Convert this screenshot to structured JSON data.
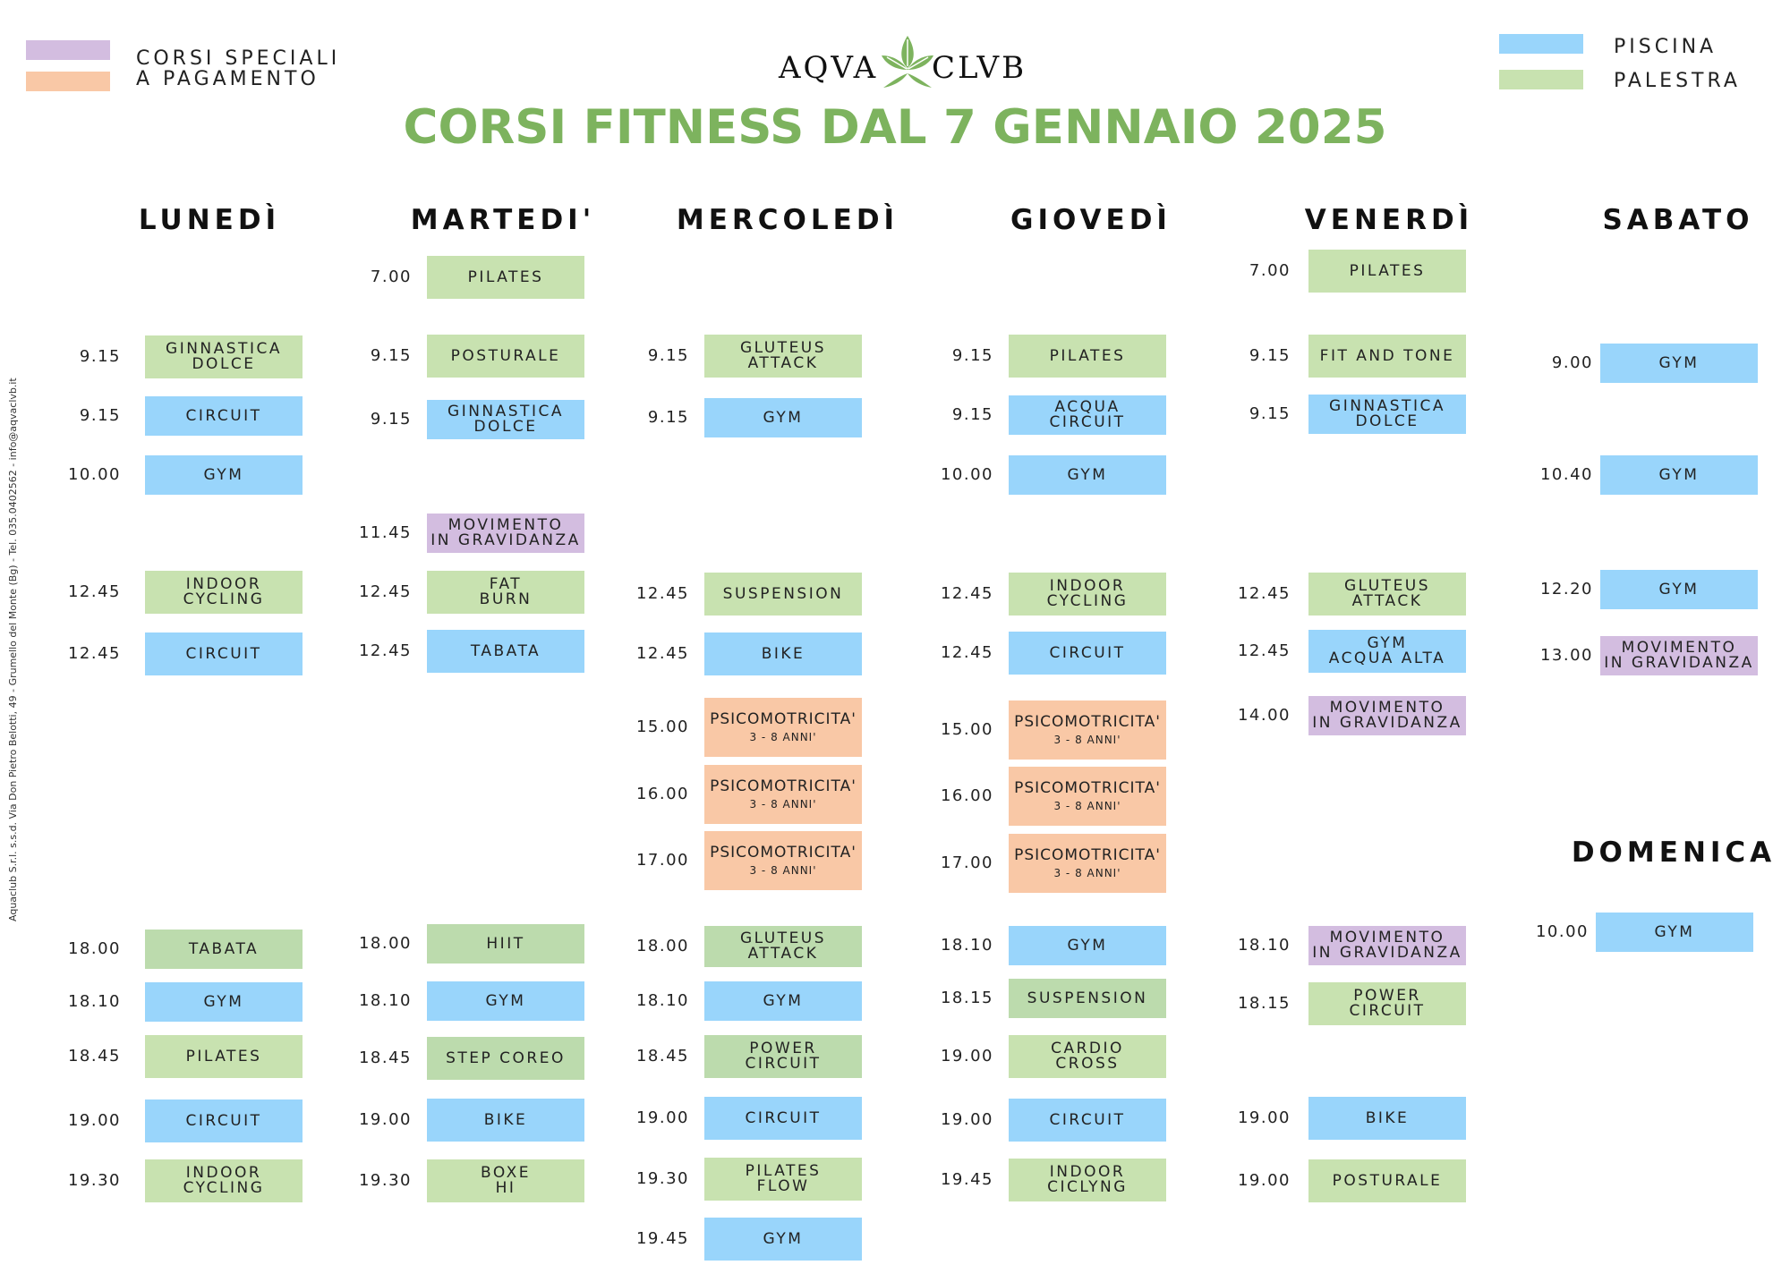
{
  "legend_left": {
    "line1": "CORSI SPECIALI",
    "line2": "A PAGAMENTO",
    "color_special": "#d3bde0",
    "color_paid": "#f9c8a6"
  },
  "legend_right": {
    "pool": "PISCINA",
    "gym": "PALESTRA",
    "color_pool": "#99d5fb",
    "color_gym": "#c8e2b0"
  },
  "logo": {
    "left": "AQVA",
    "right": "CLVB",
    "icon": "leaf-logo-icon"
  },
  "title": "CORSI FITNESS DAL 7 GENNAIO 2025",
  "side_text": "Aquaclub S.r.l. s.s.d. Via Don Pietro Belotti, 49 - Grumello del Monte (Bg) - Tel. 035.0402562 - info@aqvaclvb.it",
  "days": {
    "mon": "LUNEDÌ",
    "tue": "MARTEDI'",
    "wed": "MERCOLEDÌ",
    "thu": "GIOVEDÌ",
    "fri": "VENERDÌ",
    "sat": "SABATO",
    "sun": "DOMENICA"
  },
  "classes": [
    {
      "day": "mon",
      "time": "9.15",
      "l1": "GINNASTICA",
      "l2": "DOLCE",
      "type": "green"
    },
    {
      "day": "mon",
      "time": "9.15",
      "l1": "CIRCUIT",
      "l2": "",
      "type": "blue"
    },
    {
      "day": "mon",
      "time": "10.00",
      "l1": "GYM",
      "l2": "",
      "type": "blue"
    },
    {
      "day": "mon",
      "time": "12.45",
      "l1": "INDOOR",
      "l2": "CYCLING",
      "type": "green"
    },
    {
      "day": "mon",
      "time": "12.45",
      "l1": "CIRCUIT",
      "l2": "",
      "type": "blue"
    },
    {
      "day": "mon",
      "time": "18.00",
      "l1": "TABATA",
      "l2": "",
      "type": "green2"
    },
    {
      "day": "mon",
      "time": "18.10",
      "l1": "GYM",
      "l2": "",
      "type": "blue"
    },
    {
      "day": "mon",
      "time": "18.45",
      "l1": "PILATES",
      "l2": "",
      "type": "green"
    },
    {
      "day": "mon",
      "time": "19.00",
      "l1": "CIRCUIT",
      "l2": "",
      "type": "blue"
    },
    {
      "day": "mon",
      "time": "19.30",
      "l1": "INDOOR",
      "l2": "CYCLING",
      "type": "green"
    },
    {
      "day": "tue",
      "time": "7.00",
      "l1": "PILATES",
      "l2": "",
      "type": "green"
    },
    {
      "day": "tue",
      "time": "9.15",
      "l1": "POSTURALE",
      "l2": "",
      "type": "green"
    },
    {
      "day": "tue",
      "time": "9.15",
      "l1": "GINNASTICA",
      "l2": "DOLCE",
      "type": "blue"
    },
    {
      "day": "tue",
      "time": "11.45",
      "l1": "MOVIMENTO",
      "l2": "IN GRAVIDANZA",
      "type": "purple"
    },
    {
      "day": "tue",
      "time": "12.45",
      "l1": "FAT",
      "l2": "BURN",
      "type": "green"
    },
    {
      "day": "tue",
      "time": "12.45",
      "l1": "TABATA",
      "l2": "",
      "type": "blue"
    },
    {
      "day": "tue",
      "time": "18.00",
      "l1": "HIIT",
      "l2": "",
      "type": "green2"
    },
    {
      "day": "tue",
      "time": "18.10",
      "l1": "GYM",
      "l2": "",
      "type": "blue"
    },
    {
      "day": "tue",
      "time": "18.45",
      "l1": "STEP COREO",
      "l2": "",
      "type": "green2"
    },
    {
      "day": "tue",
      "time": "19.00",
      "l1": "BIKE",
      "l2": "",
      "type": "blue"
    },
    {
      "day": "tue",
      "time": "19.30",
      "l1": "BOXE",
      "l2": "HI",
      "type": "green"
    },
    {
      "day": "wed",
      "time": "9.15",
      "l1": "GLUTEUS",
      "l2": "ATTACK",
      "type": "green"
    },
    {
      "day": "wed",
      "time": "9.15",
      "l1": "GYM",
      "l2": "",
      "type": "blue"
    },
    {
      "day": "wed",
      "time": "12.45",
      "l1": "SUSPENSION",
      "l2": "",
      "type": "green"
    },
    {
      "day": "wed",
      "time": "12.45",
      "l1": "BIKE",
      "l2": "",
      "type": "blue"
    },
    {
      "day": "wed",
      "time": "15.00",
      "l1": "PSICOMOTRICITA'",
      "l2": "3 - 8 ANNI'",
      "type": "orange"
    },
    {
      "day": "wed",
      "time": "16.00",
      "l1": "PSICOMOTRICITA'",
      "l2": "3 - 8 ANNI'",
      "type": "orange"
    },
    {
      "day": "wed",
      "time": "17.00",
      "l1": "PSICOMOTRICITA'",
      "l2": "3 - 8 ANNI'",
      "type": "orange"
    },
    {
      "day": "wed",
      "time": "18.00",
      "l1": "GLUTEUS",
      "l2": "ATTACK",
      "type": "green2"
    },
    {
      "day": "wed",
      "time": "18.10",
      "l1": "GYM",
      "l2": "",
      "type": "blue"
    },
    {
      "day": "wed",
      "time": "18.45",
      "l1": "POWER",
      "l2": "CIRCUIT",
      "type": "green2"
    },
    {
      "day": "wed",
      "time": "19.00",
      "l1": "CIRCUIT",
      "l2": "",
      "type": "blue"
    },
    {
      "day": "wed",
      "time": "19.30",
      "l1": "PILATES",
      "l2": "FLOW",
      "type": "green"
    },
    {
      "day": "wed",
      "time": "19.45",
      "l1": "GYM",
      "l2": "",
      "type": "blue"
    },
    {
      "day": "thu",
      "time": "9.15",
      "l1": "PILATES",
      "l2": "",
      "type": "green"
    },
    {
      "day": "thu",
      "time": "9.15",
      "l1": "ACQUA",
      "l2": "CIRCUIT",
      "type": "blue"
    },
    {
      "day": "thu",
      "time": "10.00",
      "l1": "GYM",
      "l2": "",
      "type": "blue"
    },
    {
      "day": "thu",
      "time": "12.45",
      "l1": "INDOOR",
      "l2": "CYCLING",
      "type": "green"
    },
    {
      "day": "thu",
      "time": "12.45",
      "l1": "CIRCUIT",
      "l2": "",
      "type": "blue"
    },
    {
      "day": "thu",
      "time": "15.00",
      "l1": "PSICOMOTRICITA'",
      "l2": "3 - 8 ANNI'",
      "type": "orange"
    },
    {
      "day": "thu",
      "time": "16.00",
      "l1": "PSICOMOTRICITA'",
      "l2": "3 - 8 ANNI'",
      "type": "orange"
    },
    {
      "day": "thu",
      "time": "17.00",
      "l1": "PSICOMOTRICITA'",
      "l2": "3 - 8 ANNI'",
      "type": "orange"
    },
    {
      "day": "thu",
      "time": "18.10",
      "l1": "GYM",
      "l2": "",
      "type": "blue"
    },
    {
      "day": "thu",
      "time": "18.15",
      "l1": "SUSPENSION",
      "l2": "",
      "type": "green2"
    },
    {
      "day": "thu",
      "time": "19.00",
      "l1": "CARDIO",
      "l2": "CROSS",
      "type": "green"
    },
    {
      "day": "thu",
      "time": "19.00",
      "l1": "CIRCUIT",
      "l2": "",
      "type": "blue"
    },
    {
      "day": "thu",
      "time": "19.45",
      "l1": "INDOOR",
      "l2": "CICLYNG",
      "type": "green"
    },
    {
      "day": "fri",
      "time": "7.00",
      "l1": "PILATES",
      "l2": "",
      "type": "green"
    },
    {
      "day": "fri",
      "time": "9.15",
      "l1": "FIT AND TONE",
      "l2": "",
      "type": "green"
    },
    {
      "day": "fri",
      "time": "9.15",
      "l1": "GINNASTICA",
      "l2": "DOLCE",
      "type": "blue"
    },
    {
      "day": "fri",
      "time": "12.45",
      "l1": "GLUTEUS",
      "l2": "ATTACK",
      "type": "green"
    },
    {
      "day": "fri",
      "time": "12.45",
      "l1": "GYM",
      "l2": "ACQUA ALTA",
      "type": "blue"
    },
    {
      "day": "fri",
      "time": "14.00",
      "l1": "MOVIMENTO",
      "l2": "IN GRAVIDANZA",
      "type": "purple"
    },
    {
      "day": "fri",
      "time": "18.10",
      "l1": "MOVIMENTO",
      "l2": "IN GRAVIDANZA",
      "type": "purple"
    },
    {
      "day": "fri",
      "time": "18.15",
      "l1": "POWER",
      "l2": "CIRCUIT",
      "type": "green"
    },
    {
      "day": "fri",
      "time": "19.00",
      "l1": "BIKE",
      "l2": "",
      "type": "blue"
    },
    {
      "day": "fri",
      "time": "19.00",
      "l1": "POSTURALE",
      "l2": "",
      "type": "green"
    },
    {
      "day": "sat",
      "time": "9.00",
      "l1": "GYM",
      "l2": "",
      "type": "blue"
    },
    {
      "day": "sat",
      "time": "10.40",
      "l1": "GYM",
      "l2": "",
      "type": "blue"
    },
    {
      "day": "sat",
      "time": "12.20",
      "l1": "GYM",
      "l2": "",
      "type": "blue"
    },
    {
      "day": "sat",
      "time": "13.00",
      "l1": "MOVIMENTO",
      "l2": "IN GRAVIDANZA",
      "type": "purple"
    },
    {
      "day": "sun",
      "time": "10.00",
      "l1": "GYM",
      "l2": "",
      "type": "blue"
    }
  ]
}
